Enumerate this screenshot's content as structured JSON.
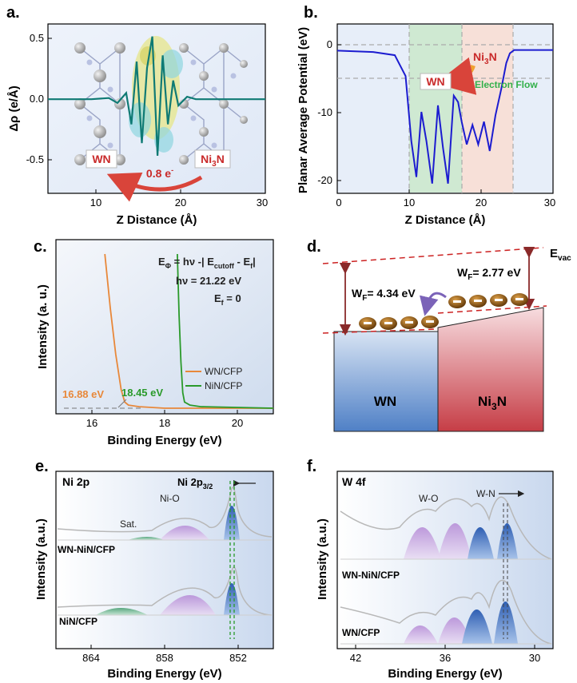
{
  "panels": {
    "a": {
      "label": "a.",
      "xlabel": "Z Distance (Å)",
      "ylabel": "Δρ (e/Å)",
      "xticks": [
        "10",
        "20",
        "30"
      ],
      "yticks": [
        "0.5",
        "0.0",
        "-0.5"
      ],
      "left_material": "WN",
      "right_material": "Ni",
      "right_sub": "3",
      "right_tail": "N",
      "transfer_label": "0.8 e",
      "transfer_sup": "-"
    },
    "b": {
      "label": "b.",
      "xlabel": "Z Distance (Å)",
      "ylabel": "Planar Average Potential (eV)",
      "xticks": [
        "0",
        "10",
        "20",
        "30"
      ],
      "yticks": [
        "0",
        "-10",
        "-20"
      ],
      "left_material": "WN",
      "right_material": "Ni",
      "right_sub": "3",
      "right_tail": "N",
      "flow_label": "Electron Flow"
    },
    "c": {
      "label": "c.",
      "xlabel": "Binding Energy (eV)",
      "ylabel": "Intensity (a. u.)",
      "xticks": [
        "16",
        "18",
        "20"
      ],
      "eq1_a": "E",
      "eq1_sub": "Φ",
      "eq1_b": " = hν -| E",
      "eq1_sub2": "cutoff",
      "eq1_c": " - E",
      "eq1_sub3": "f",
      "eq1_d": "|",
      "eq2": "hν = 21.22 eV",
      "eq3_a": "E",
      "eq3_sub": "f",
      "eq3_b": " = 0",
      "legend": [
        "WN/CFP",
        "NiN/CFP"
      ],
      "cutoff_labels": [
        "16.88 eV",
        "18.45 eV"
      ]
    },
    "d": {
      "label": "d.",
      "evac": "E",
      "evac_sub": "vac",
      "wf_left_a": "W",
      "wf_left_sub": "F",
      "wf_left_b": "= 4.34 eV",
      "wf_right_a": "W",
      "wf_right_sub": "F",
      "wf_right_b": "= 2.77 eV",
      "left_block": "WN",
      "right_block": "Ni",
      "right_sub": "3",
      "right_tail": "N"
    },
    "e": {
      "label": "e.",
      "title": "Ni 2p",
      "peak_a": "Ni 2p",
      "peak_sub": "3/2",
      "sat": "Sat.",
      "nio": "Ni-O",
      "sample_top": "WN-NiN/CFP",
      "sample_bottom": "NiN/CFP",
      "xlabel": "Binding Energy (eV)",
      "ylabel": "Intensity (a.u.)",
      "xticks": [
        "864",
        "858",
        "852"
      ]
    },
    "f": {
      "label": "f.",
      "title": "W 4f",
      "wo": "W-O",
      "wn": "W-N",
      "sample_top": "WN-NiN/CFP",
      "sample_bottom": "WN/CFP",
      "xlabel": "Binding Energy (eV)",
      "ylabel": "Intensity (a.u.)",
      "xticks": [
        "42",
        "36",
        "30"
      ]
    }
  },
  "chart_data": [
    {
      "panel": "a",
      "type": "line",
      "xlim": [
        5,
        30
      ],
      "ylim": [
        -0.75,
        0.6
      ],
      "series": [
        {
          "x": [
            5,
            10,
            12,
            13,
            14,
            14.6,
            15.2,
            15.8,
            16.4,
            17.0,
            17.6,
            18.2,
            18.8,
            19.4,
            20.0,
            21,
            22,
            24,
            30
          ],
          "values": [
            0.0,
            0.0,
            0.01,
            -0.03,
            0.05,
            -0.2,
            0.3,
            -0.35,
            0.25,
            0.5,
            -0.45,
            0.35,
            -0.2,
            0.15,
            -0.05,
            0.02,
            0.0,
            0.0,
            0.0
          ]
        }
      ]
    },
    {
      "panel": "b",
      "type": "line",
      "xlim": [
        0,
        30
      ],
      "ylim": [
        -22,
        4
      ],
      "series": [
        {
          "x": [
            0,
            5,
            8,
            9.5,
            10.3,
            11.0,
            11.7,
            12.4,
            13.2,
            14.0,
            14.7,
            15.4,
            16.2,
            16.8,
            17.3,
            18.0,
            18.8,
            19.6,
            20.4,
            21.2,
            22.0,
            22.8,
            23.5,
            24.0,
            24.6,
            26,
            30
          ],
          "values": [
            -0.1,
            -0.3,
            -0.8,
            -4,
            -14,
            -19.5,
            -9.5,
            -14,
            -20.5,
            -8.5,
            -15,
            -20.5,
            -7,
            -8,
            -11,
            -14.5,
            -11.5,
            -14.5,
            -11,
            -15.5,
            -10,
            -6,
            -2,
            -0.5,
            0,
            0,
            0
          ]
        }
      ]
    },
    {
      "panel": "c",
      "type": "line",
      "xlim": [
        15,
        21
      ],
      "series": [
        {
          "name": "WN/CFP",
          "x": [
            16.35,
            16.5,
            16.65,
            16.8,
            16.9,
            17.0,
            17.3,
            18,
            21
          ],
          "values": [
            1.0,
            0.65,
            0.35,
            0.12,
            0.04,
            0.02,
            0.01,
            0.0,
            0.0
          ]
        },
        {
          "name": "NiN/CFP",
          "x": [
            18.35,
            18.4,
            18.45,
            18.5,
            18.55,
            18.7,
            19,
            21
          ],
          "values": [
            1.0,
            0.6,
            0.3,
            0.1,
            0.04,
            0.02,
            0.01,
            0.0
          ]
        }
      ]
    }
  ]
}
